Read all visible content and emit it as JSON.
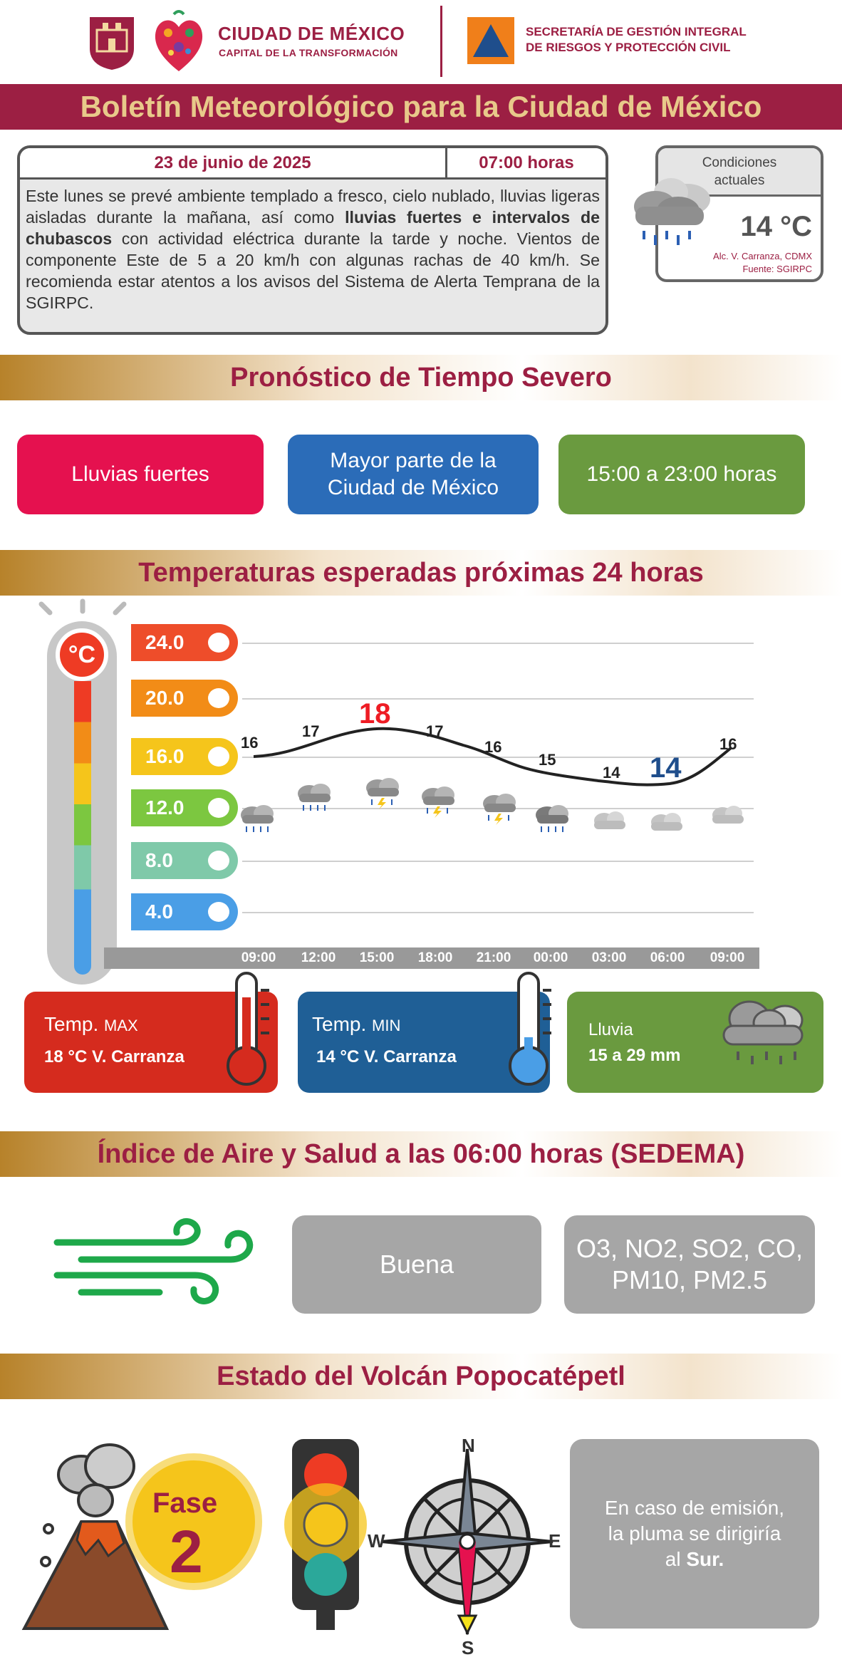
{
  "header": {
    "gov_name_line1": "CIUDAD DE MÉXICO",
    "gov_name_line2": "CAPITAL DE LA TRANSFORMACIÓN",
    "secretaria_line1": "SECRETARÍA DE GESTIÓN INTEGRAL",
    "secretaria_line2": "DE RIESGOS Y PROTECCIÓN CIVIL"
  },
  "title": "Boletín Meteorológico para la Ciudad de México",
  "bulletin": {
    "date": "23 de junio de 2025",
    "time": "07:00 horas",
    "text_part1": "Este lunes se prevé ambiente templado a fresco, cielo nublado, lluvias ligeras aisladas durante la mañana, así como ",
    "text_bold": "lluvias fuertes e intervalos de chubascos",
    "text_part2": " con actividad eléctrica durante la tarde y noche. Vientos de componente Este de 5 a 20 km/h con algunas rachas de 40 km/h. Se recomienda estar atentos a los avisos del Sistema de Alerta Temprana de la SGIRPC."
  },
  "current_conditions": {
    "title_line1": "Condiciones",
    "title_line2": "actuales",
    "temperature": "14 °C",
    "location": "Alc. V. Carranza, CDMX",
    "source": "Fuente: SGIRPC"
  },
  "severe": {
    "heading": "Pronóstico de Tiempo Severo",
    "phenomenon": "Lluvias fuertes",
    "area_line1": "Mayor parte de la",
    "area_line2": "Ciudad de México",
    "period": "15:00 a 23:00 horas"
  },
  "temps": {
    "heading": "Temperaturas esperadas próximas 24 horas",
    "unit_label": "°C",
    "levels": [
      "24.0",
      "20.0",
      "16.0",
      "12.0",
      "8.0",
      "4.0"
    ],
    "times": [
      "09:00",
      "12:00",
      "15:00",
      "18:00",
      "21:00",
      "00:00",
      "03:00",
      "06:00",
      "09:00"
    ],
    "values": [
      "16",
      "17",
      "18",
      "17",
      "16",
      "15",
      "14",
      "14",
      "16"
    ]
  },
  "stats": {
    "max_label": "Temp.",
    "max_suffix": "MAX",
    "max_value": "18 °C  V. Carranza",
    "min_label": "Temp.",
    "min_suffix": "MIN",
    "min_value": "14 °C  V. Carranza",
    "rain_label": "Lluvia",
    "rain_value": "15 a 29 mm"
  },
  "air": {
    "heading": "Índice de Aire y Salud a las 06:00 horas (SEDEMA)",
    "quality": "Buena",
    "pollutants_line1": "O3, NO2, SO2, CO,",
    "pollutants_line2": "PM10, PM2.5"
  },
  "volcano": {
    "heading": "Estado del Volcán Popocatépetl",
    "phase_label": "Fase",
    "phase_number": "2",
    "compass_n": "N",
    "compass_s": "S",
    "compass_e": "E",
    "compass_w": "W",
    "plume_line1": "En caso de emisión,",
    "plume_line2": "la pluma se dirigiría",
    "plume_line3_prefix": "al ",
    "plume_direction": "Sur."
  },
  "colors": {
    "maroon": "#9c1f43",
    "gold": "#e8c98a",
    "severe_red": "#e5114f",
    "severe_blue": "#2b6cb8",
    "severe_green": "#6a9a3f",
    "max_red": "#d52b1e",
    "min_blue": "#1f5f96"
  }
}
